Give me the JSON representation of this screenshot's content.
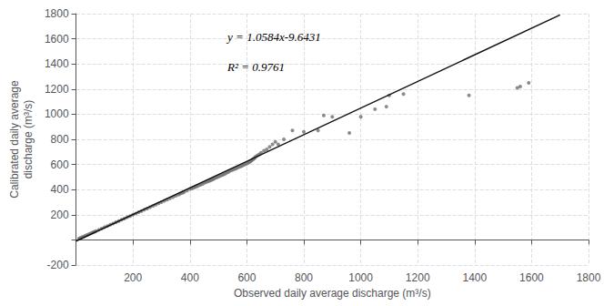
{
  "chart_data": {
    "type": "scatter",
    "xlabel": "Observed daily average discharge (m³/s)",
    "ylabel": "Calibrated daily average\ndischarge (m³/s)",
    "annotations": [
      "y = 1.0584x-9.6431",
      "R² = 0.9761"
    ],
    "xlim": [
      0,
      1800
    ],
    "ylim": [
      -200,
      1800
    ],
    "xticks": [
      {
        "value": 0,
        "label": ""
      },
      200,
      400,
      600,
      800,
      1000,
      1200,
      1400,
      1600,
      1800
    ],
    "yticks": [
      -200,
      {
        "value": 0,
        "label": ""
      },
      200,
      400,
      600,
      800,
      1000,
      1200,
      1400,
      1600,
      1800
    ],
    "grid": true,
    "series": [
      {
        "type": "scatter",
        "color": "#777777",
        "x": [
          10,
          15,
          20,
          25,
          30,
          35,
          40,
          45,
          50,
          55,
          60,
          65,
          70,
          80,
          90,
          100,
          110,
          120,
          130,
          140,
          150,
          160,
          170,
          180,
          190,
          200,
          210,
          220,
          230,
          240,
          250,
          260,
          270,
          280,
          290,
          300,
          310,
          320,
          330,
          340,
          350,
          360,
          365,
          370,
          375,
          380,
          390,
          400,
          405,
          410,
          415,
          420,
          425,
          430,
          435,
          440,
          445,
          450,
          455,
          460,
          465,
          468,
          470,
          472,
          475,
          478,
          480,
          482,
          485,
          490,
          495,
          500,
          505,
          510,
          515,
          520,
          525,
          530,
          535,
          540,
          545,
          550,
          555,
          560,
          565,
          570,
          575,
          580,
          585,
          590,
          595,
          600,
          605,
          608,
          610,
          612,
          615,
          618,
          620,
          622,
          625,
          628,
          630,
          635,
          640,
          645,
          650,
          660,
          670,
          680,
          690,
          700,
          710,
          730,
          760,
          800,
          850,
          870,
          900,
          960,
          1000,
          1050,
          1090,
          1100,
          1150,
          1380,
          1550,
          1560,
          1590
        ],
        "values": [
          10,
          15,
          20,
          25,
          30,
          35,
          40,
          45,
          50,
          55,
          60,
          65,
          70,
          80,
          90,
          100,
          110,
          120,
          130,
          140,
          150,
          160,
          170,
          180,
          190,
          200,
          210,
          220,
          230,
          240,
          250,
          260,
          270,
          280,
          290,
          300,
          310,
          320,
          330,
          340,
          350,
          360,
          366,
          372,
          376,
          382,
          393,
          405,
          408,
          413,
          418,
          422,
          427,
          432,
          437,
          442,
          447,
          453,
          458,
          463,
          468,
          470,
          472,
          475,
          478,
          480,
          483,
          485,
          488,
          493,
          498,
          503,
          508,
          513,
          518,
          523,
          528,
          535,
          540,
          548,
          553,
          558,
          563,
          567,
          572,
          577,
          582,
          587,
          592,
          597,
          602,
          607,
          614,
          618,
          622,
          625,
          630,
          635,
          638,
          642,
          648,
          653,
          660,
          668,
          675,
          683,
          693,
          710,
          720,
          740,
          760,
          780,
          760,
          800,
          870,
          860,
          870,
          990,
          980,
          850,
          980,
          1040,
          1060,
          1150,
          1160,
          1150,
          1210,
          1220,
          1250
        ]
      },
      {
        "type": "line",
        "color": "#111111",
        "x": [
          0,
          1700
        ],
        "values": [
          -9.6431,
          1789.6369
        ]
      }
    ]
  }
}
